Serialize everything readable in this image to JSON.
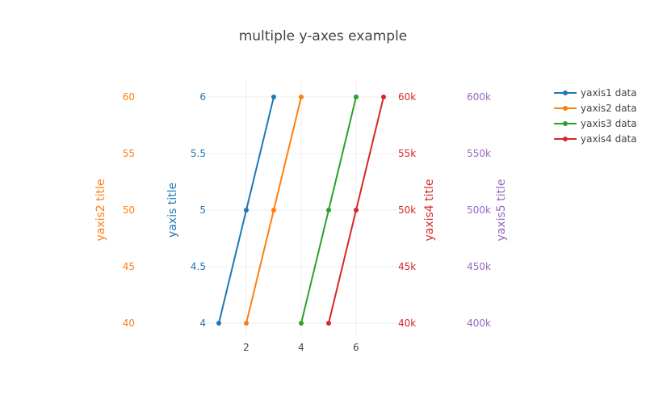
{
  "chart_data": {
    "type": "line",
    "title": "multiple y-axes example",
    "xaxis": {
      "ticks": [
        2,
        4,
        6
      ],
      "range": [
        0.5,
        7.5
      ]
    },
    "yaxes": [
      {
        "id": "y1",
        "title": "yaxis title",
        "color": "#1f77b4",
        "range": [
          4,
          6
        ],
        "ticks": [
          "4",
          "4.5",
          "5",
          "5.5",
          "6"
        ],
        "tick_values": [
          4,
          4.5,
          5,
          5.5,
          6
        ]
      },
      {
        "id": "y2",
        "title": "yaxis2 title",
        "color": "#ff7f0e",
        "range": [
          40,
          60
        ],
        "ticks": [
          "40",
          "45",
          "50",
          "55",
          "60"
        ],
        "tick_values": [
          40,
          45,
          50,
          55,
          60
        ]
      },
      {
        "id": "y4",
        "title": "yaxis4 title",
        "color": "#d62728",
        "range": [
          40000,
          60000
        ],
        "ticks": [
          "40k",
          "45k",
          "50k",
          "55k",
          "60k"
        ],
        "tick_values": [
          40000,
          45000,
          50000,
          55000,
          60000
        ]
      },
      {
        "id": "y5",
        "title": "yaxis5 title",
        "color": "#9467bd",
        "range": [
          400000,
          600000
        ],
        "ticks": [
          "400k",
          "450k",
          "500k",
          "550k",
          "600k"
        ],
        "tick_values": [
          400000,
          450000,
          500000,
          550000,
          600000
        ]
      }
    ],
    "series": [
      {
        "name": "yaxis1 data",
        "color": "#1f77b4",
        "axis": "y1",
        "x": [
          1,
          2,
          3
        ],
        "y": [
          4,
          5,
          6
        ]
      },
      {
        "name": "yaxis2 data",
        "color": "#ff7f0e",
        "axis": "y2",
        "x": [
          2,
          3,
          4
        ],
        "y": [
          40,
          50,
          60
        ]
      },
      {
        "name": "yaxis3 data",
        "color": "#2ca02c",
        "axis": "y1",
        "x": [
          4,
          5,
          6
        ],
        "y": [
          4,
          5,
          6
        ]
      },
      {
        "name": "yaxis4 data",
        "color": "#d62728",
        "axis": "y4",
        "x": [
          5,
          6,
          7
        ],
        "y": [
          40000,
          50000,
          60000
        ]
      }
    ],
    "legend_position": "top-right",
    "grid": true
  }
}
